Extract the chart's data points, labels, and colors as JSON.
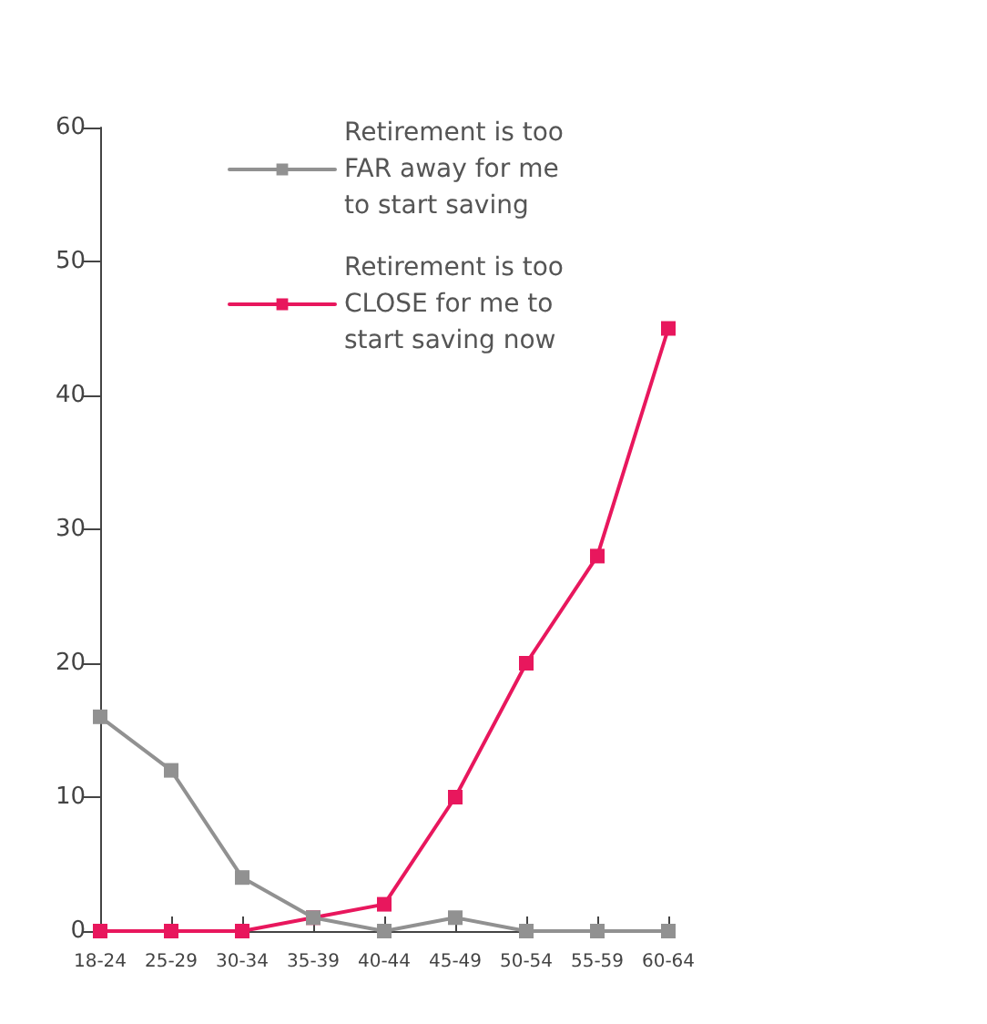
{
  "chart_data": {
    "type": "line",
    "categories": [
      "18-24",
      "25-29",
      "30-34",
      "35-39",
      "40-44",
      "45-49",
      "50-54",
      "55-59",
      "60-64"
    ],
    "series": [
      {
        "name": "Retirement is too FAR away for me to start saving",
        "color": "#919191",
        "values": [
          16,
          12,
          4,
          1,
          0,
          1,
          0,
          0,
          0
        ]
      },
      {
        "name": "Retirement is too CLOSE for me to start saving now",
        "color": "#e8175d",
        "values": [
          0,
          0,
          0,
          1,
          2,
          10,
          20,
          28,
          45
        ]
      }
    ],
    "ylim": [
      0,
      60
    ],
    "yticks": [
      0,
      10,
      20,
      30,
      40,
      50,
      60
    ],
    "grid": false,
    "legend": "top",
    "marker": "square",
    "line_style": "solid"
  }
}
